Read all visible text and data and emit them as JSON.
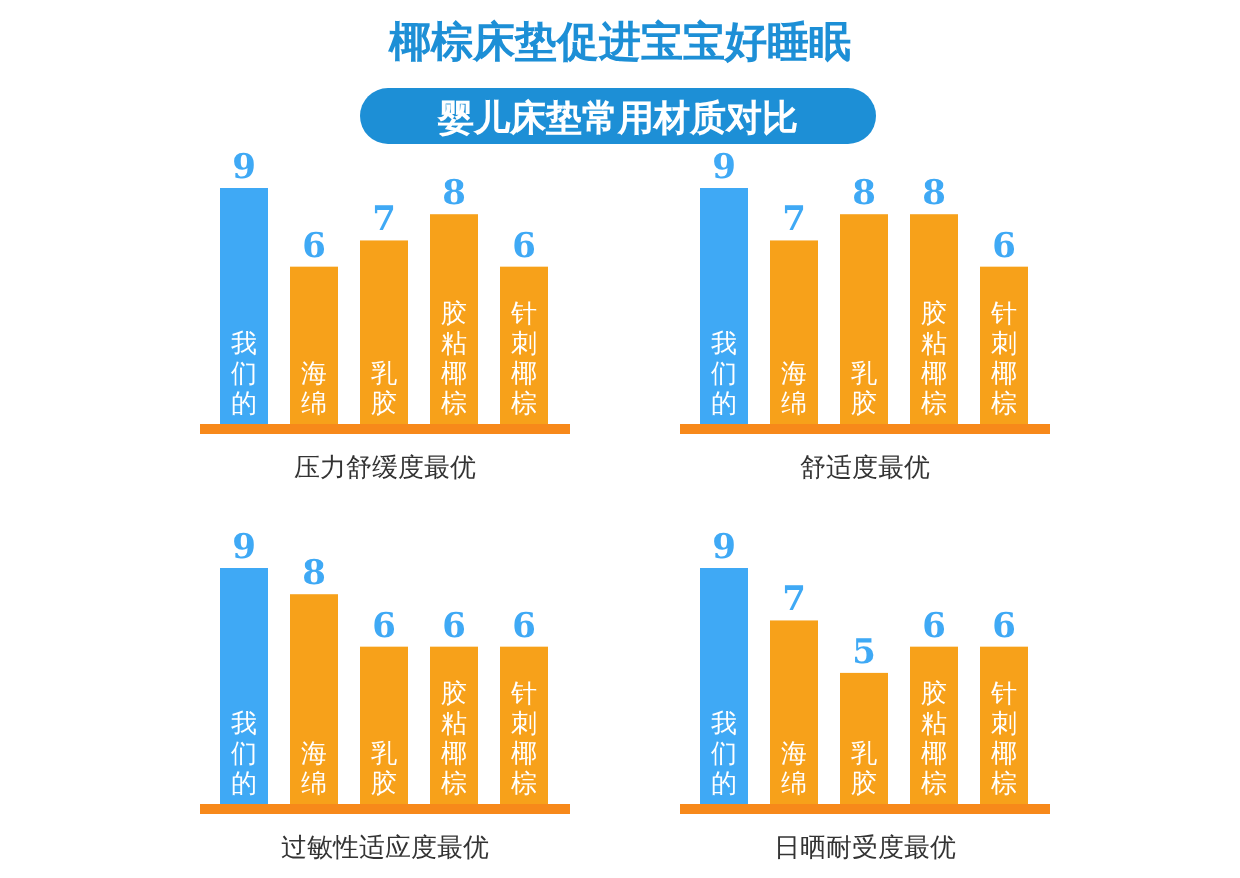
{
  "chart_data": [
    {
      "type": "bar",
      "title": "椰棕床垫促进宝宝好睡眠",
      "subtitle": "婴儿床垫常用材质对比",
      "xlabel": "压力舒缓度最优",
      "categories": [
        "我们的",
        "海绵",
        "乳胶",
        "胶粘椰棕",
        "针刺椰棕"
      ],
      "values": [
        9,
        6,
        7,
        8,
        6
      ],
      "colors": [
        "#3fa9f5",
        "#f7a11a",
        "#f7a11a",
        "#f7a11a",
        "#f7a11a"
      ],
      "data_labels": true
    },
    {
      "type": "bar",
      "xlabel": "舒适度最优",
      "categories": [
        "我们的",
        "海绵",
        "乳胶",
        "胶粘椰棕",
        "针刺椰棕"
      ],
      "values": [
        9,
        7,
        8,
        8,
        6
      ],
      "colors": [
        "#3fa9f5",
        "#f7a11a",
        "#f7a11a",
        "#f7a11a",
        "#f7a11a"
      ],
      "data_labels": true
    },
    {
      "type": "bar",
      "xlabel": "过敏性适应度最优",
      "categories": [
        "我们的",
        "海绵",
        "乳胶",
        "胶粘椰棕",
        "针刺椰棕"
      ],
      "values": [
        9,
        8,
        6,
        6,
        6
      ],
      "colors": [
        "#3fa9f5",
        "#f7a11a",
        "#f7a11a",
        "#f7a11a",
        "#f7a11a"
      ],
      "data_labels": true
    },
    {
      "type": "bar",
      "xlabel": "日晒耐受度最优",
      "categories": [
        "我们的",
        "海绵",
        "乳胶",
        "胶粘椰棕",
        "针刺椰棕"
      ],
      "values": [
        9,
        7,
        5,
        6,
        6
      ],
      "colors": [
        "#3fa9f5",
        "#f7a11a",
        "#f7a11a",
        "#f7a11a",
        "#f7a11a"
      ],
      "data_labels": true
    }
  ]
}
